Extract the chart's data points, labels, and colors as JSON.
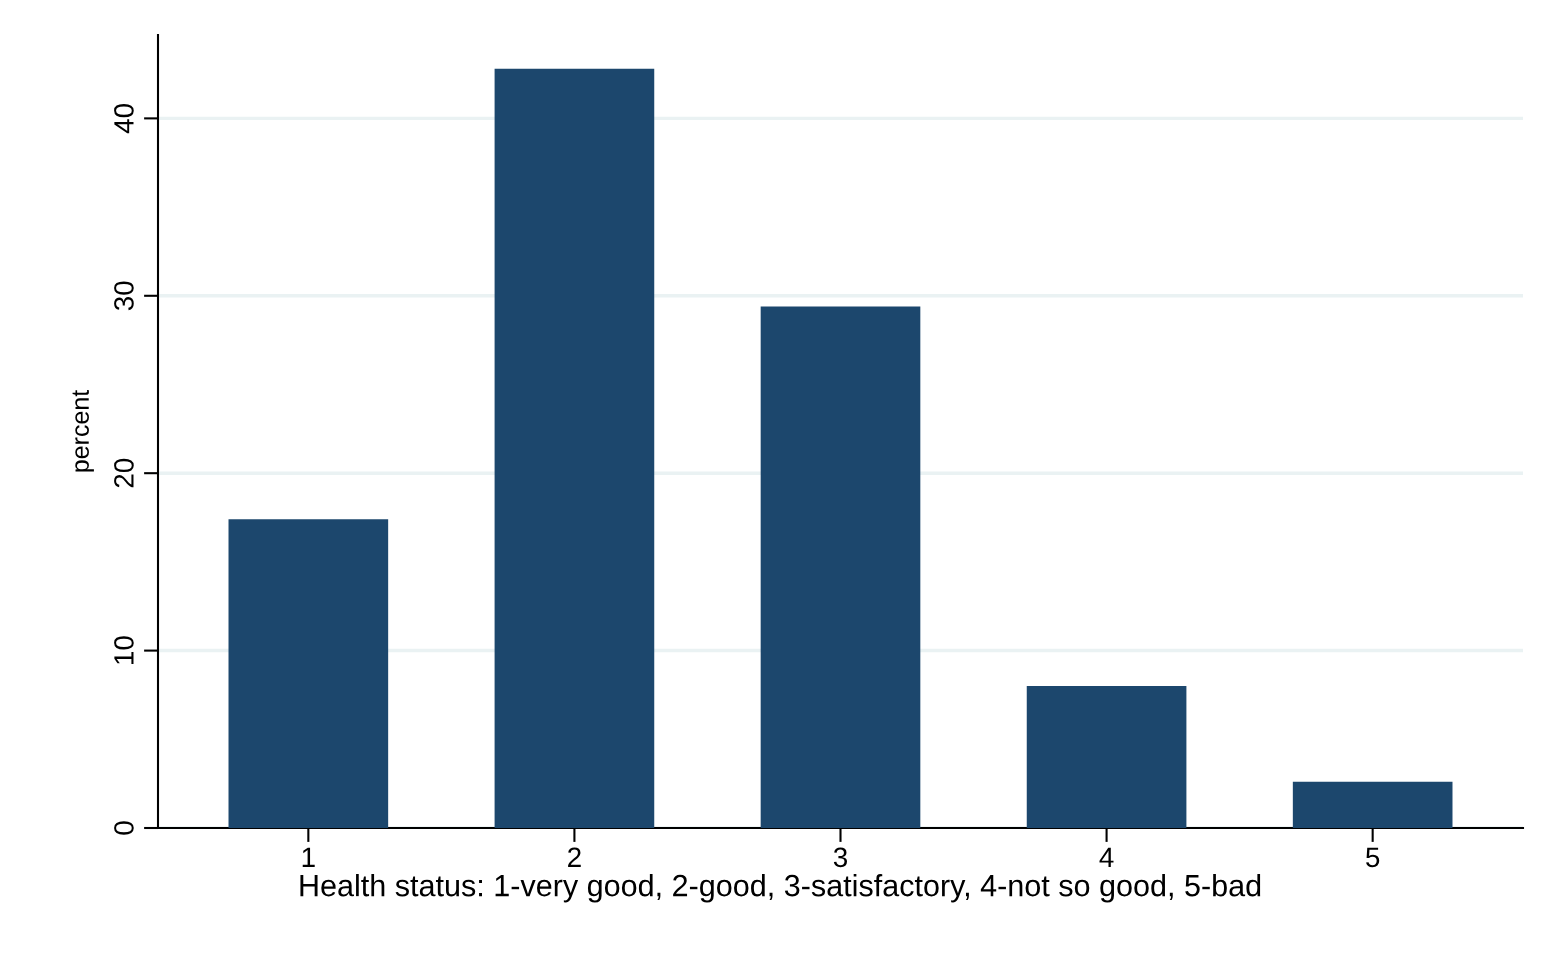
{
  "chart_data": {
    "type": "bar",
    "xlabel": "Health status: 1-very good, 2-good, 3-satisfactory, 4-not so good, 5-bad",
    "ylabel": "percent",
    "categories": [
      "1",
      "2",
      "3",
      "4",
      "5"
    ],
    "values": [
      17.4,
      42.8,
      29.4,
      8.0,
      2.6
    ],
    "color": "#1c476d",
    "ylim": [
      0,
      44.7
    ],
    "yticks": [
      0,
      10,
      20,
      30,
      40
    ],
    "grid": "y"
  }
}
